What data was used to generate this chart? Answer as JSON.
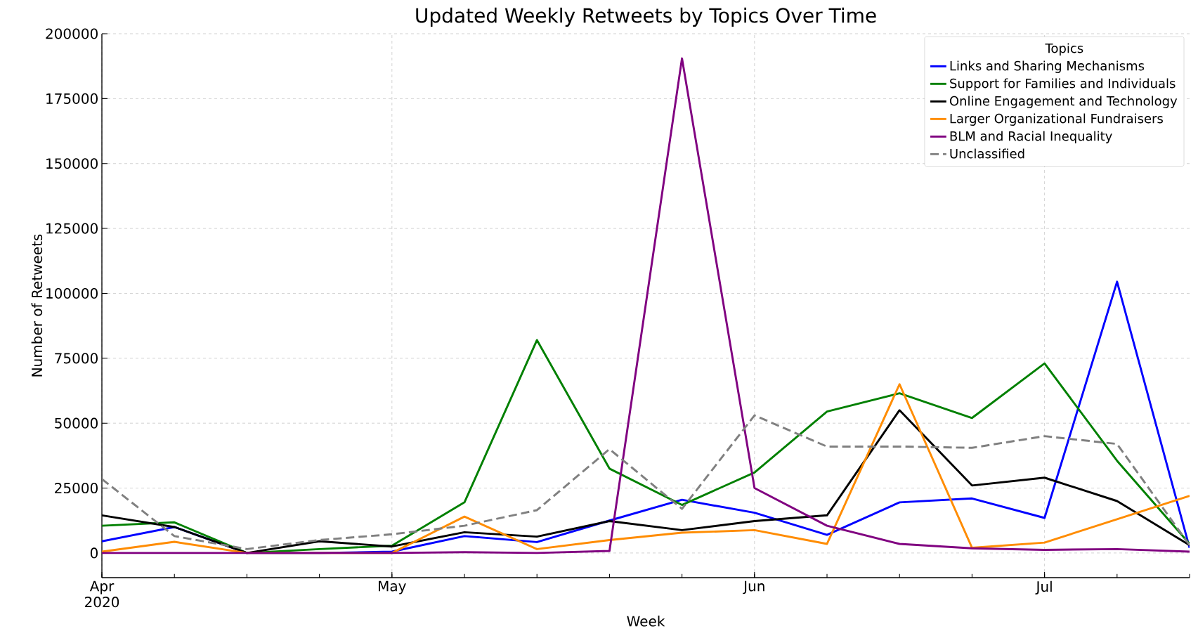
{
  "chart_data": {
    "type": "line",
    "title": "Updated Weekly Retweets by Topics Over Time",
    "xlabel": "Week",
    "ylabel": "Number of Retweets",
    "legend_title": "Topics",
    "x": [
      "2020-04-05",
      "2020-04-12",
      "2020-04-19",
      "2020-04-26",
      "2020-05-03",
      "2020-05-10",
      "2020-05-17",
      "2020-05-24",
      "2020-05-31",
      "2020-06-07",
      "2020-06-14",
      "2020-06-21",
      "2020-06-28",
      "2020-07-05",
      "2020-07-12",
      "2020-07-19"
    ],
    "series": [
      {
        "name": "Links and Sharing Mechanisms",
        "color": "#0000ff",
        "values": [
          4500,
          10000,
          0,
          0,
          500,
          6500,
          4200,
          12500,
          20500,
          15500,
          7000,
          19500,
          21000,
          13500,
          104500,
          2000
        ]
      },
      {
        "name": "Support for Families and Individuals",
        "color": "#008000",
        "values": [
          10500,
          11800,
          0,
          1500,
          2800,
          19500,
          82000,
          32500,
          18500,
          31000,
          54500,
          61500,
          52000,
          73000,
          35500,
          3500
        ]
      },
      {
        "name": "Online Engagement and Technology",
        "color": "#000000",
        "values": [
          14500,
          10000,
          0,
          4500,
          2500,
          8000,
          6300,
          12300,
          8800,
          12300,
          14500,
          55000,
          26000,
          29000,
          20000,
          3000
        ]
      },
      {
        "name": "Larger Organizational Fundraisers",
        "color": "#ff8c00",
        "values": [
          500,
          4300,
          0,
          0,
          0,
          14000,
          1500,
          5000,
          7800,
          8800,
          3500,
          65000,
          2000,
          4000,
          13000,
          22000
        ]
      },
      {
        "name": "BLM and Racial Inequality",
        "color": "#800080",
        "values": [
          0,
          0,
          0,
          0,
          0,
          300,
          0,
          800,
          190500,
          25000,
          10500,
          3500,
          1800,
          1200,
          1500,
          500
        ]
      },
      {
        "name": "Unclassified",
        "color": "#808080",
        "line_style": "dashed",
        "values": [
          28500,
          6500,
          1500,
          5000,
          7200,
          10500,
          16500,
          40000,
          17000,
          53000,
          41000,
          41000,
          40500,
          45000,
          42000,
          3000
        ]
      }
    ],
    "xlim": [
      "2020-04-05",
      "2020-07-19"
    ],
    "xticks": [
      {
        "value": "2020-04-05",
        "label": "Apr 2020"
      },
      {
        "value": "2020-05-03",
        "label": "May"
      },
      {
        "value": "2020-06-07",
        "label": "Jun"
      },
      {
        "value": "2020-07-05",
        "label": "Jul"
      }
    ],
    "ylim": [
      -9500,
      200000
    ],
    "yticks": [
      0,
      25000,
      50000,
      75000,
      100000,
      125000,
      150000,
      175000,
      200000
    ],
    "grid": true,
    "legend": "top right",
    "marker": "none",
    "line_style": "solid"
  }
}
